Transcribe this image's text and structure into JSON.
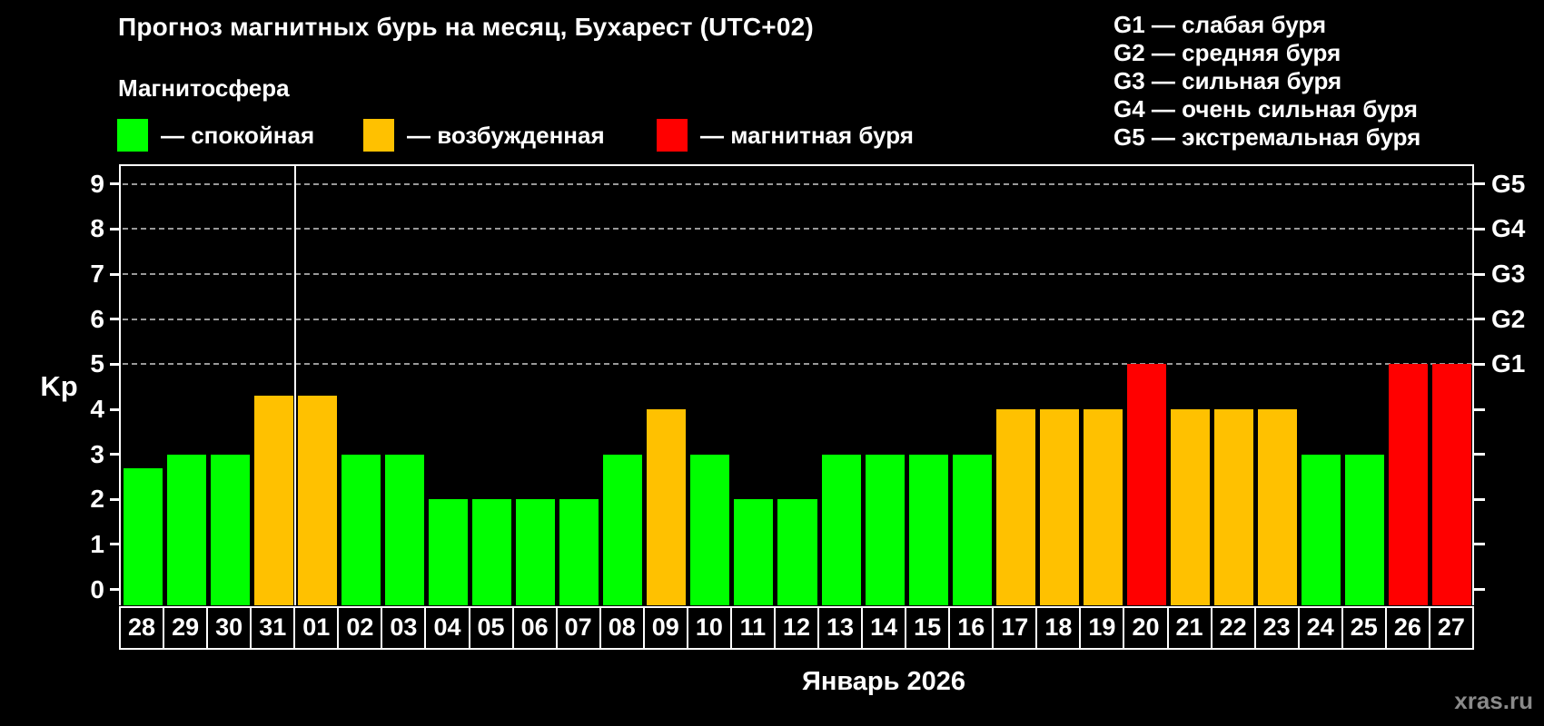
{
  "title": "Прогноз магнитных бурь на месяц, Бухарест (UTC+02)",
  "subtitle": "Магнитосфера",
  "legend": {
    "items": [
      {
        "state": "quiet",
        "label": "— спокойная",
        "color": "#00ff00"
      },
      {
        "state": "excited",
        "label": "— возбужденная",
        "color": "#ffc100"
      },
      {
        "state": "storm",
        "label": "— магнитная буря",
        "color": "#ff0000"
      }
    ]
  },
  "g_legend": {
    "items": [
      "G1 — слабая буря",
      "G2 — средняя буря",
      "G3 — сильная буря",
      "G4 — очень сильная буря",
      "G5 — экстремальная буря"
    ]
  },
  "watermark": "xras.ru",
  "chart_data": {
    "type": "bar",
    "title": "Прогноз магнитных бурь на месяц, Бухарест (UTC+02)",
    "xlabel": "Январь 2026",
    "ylabel": "Kp",
    "ylim": [
      0,
      9
    ],
    "yticks": [
      "0",
      "1",
      "2",
      "3",
      "4",
      "5",
      "6",
      "7",
      "8",
      "9"
    ],
    "grid": "dashed horizontal gridlines at Kp 5–9 only",
    "grid_levels": [
      5,
      6,
      7,
      8,
      9
    ],
    "right_axis_labels": [
      {
        "level": 5,
        "label": "G1"
      },
      {
        "level": 6,
        "label": "G2"
      },
      {
        "level": 7,
        "label": "G3"
      },
      {
        "level": 8,
        "label": "G4"
      },
      {
        "level": 9,
        "label": "G5"
      }
    ],
    "categories": [
      "28",
      "29",
      "30",
      "31",
      "01",
      "02",
      "03",
      "04",
      "05",
      "06",
      "07",
      "08",
      "09",
      "10",
      "11",
      "12",
      "13",
      "14",
      "15",
      "16",
      "17",
      "18",
      "19",
      "20",
      "21",
      "22",
      "23",
      "24",
      "25",
      "26",
      "27"
    ],
    "values": [
      2.7,
      3,
      3,
      4.3,
      4.3,
      3,
      3,
      2,
      2,
      2,
      2,
      3,
      4,
      3,
      2,
      2,
      3,
      3,
      3,
      3,
      4,
      4,
      4,
      5,
      4,
      4,
      4,
      3,
      3,
      5,
      5
    ],
    "month_boundary_index": 4,
    "colors": {
      "quiet": "#00ff00",
      "excited": "#ffc100",
      "storm": "#ff0000"
    },
    "thresholds": {
      "excited": 4,
      "storm": 5
    },
    "legend_position": "top-left"
  }
}
